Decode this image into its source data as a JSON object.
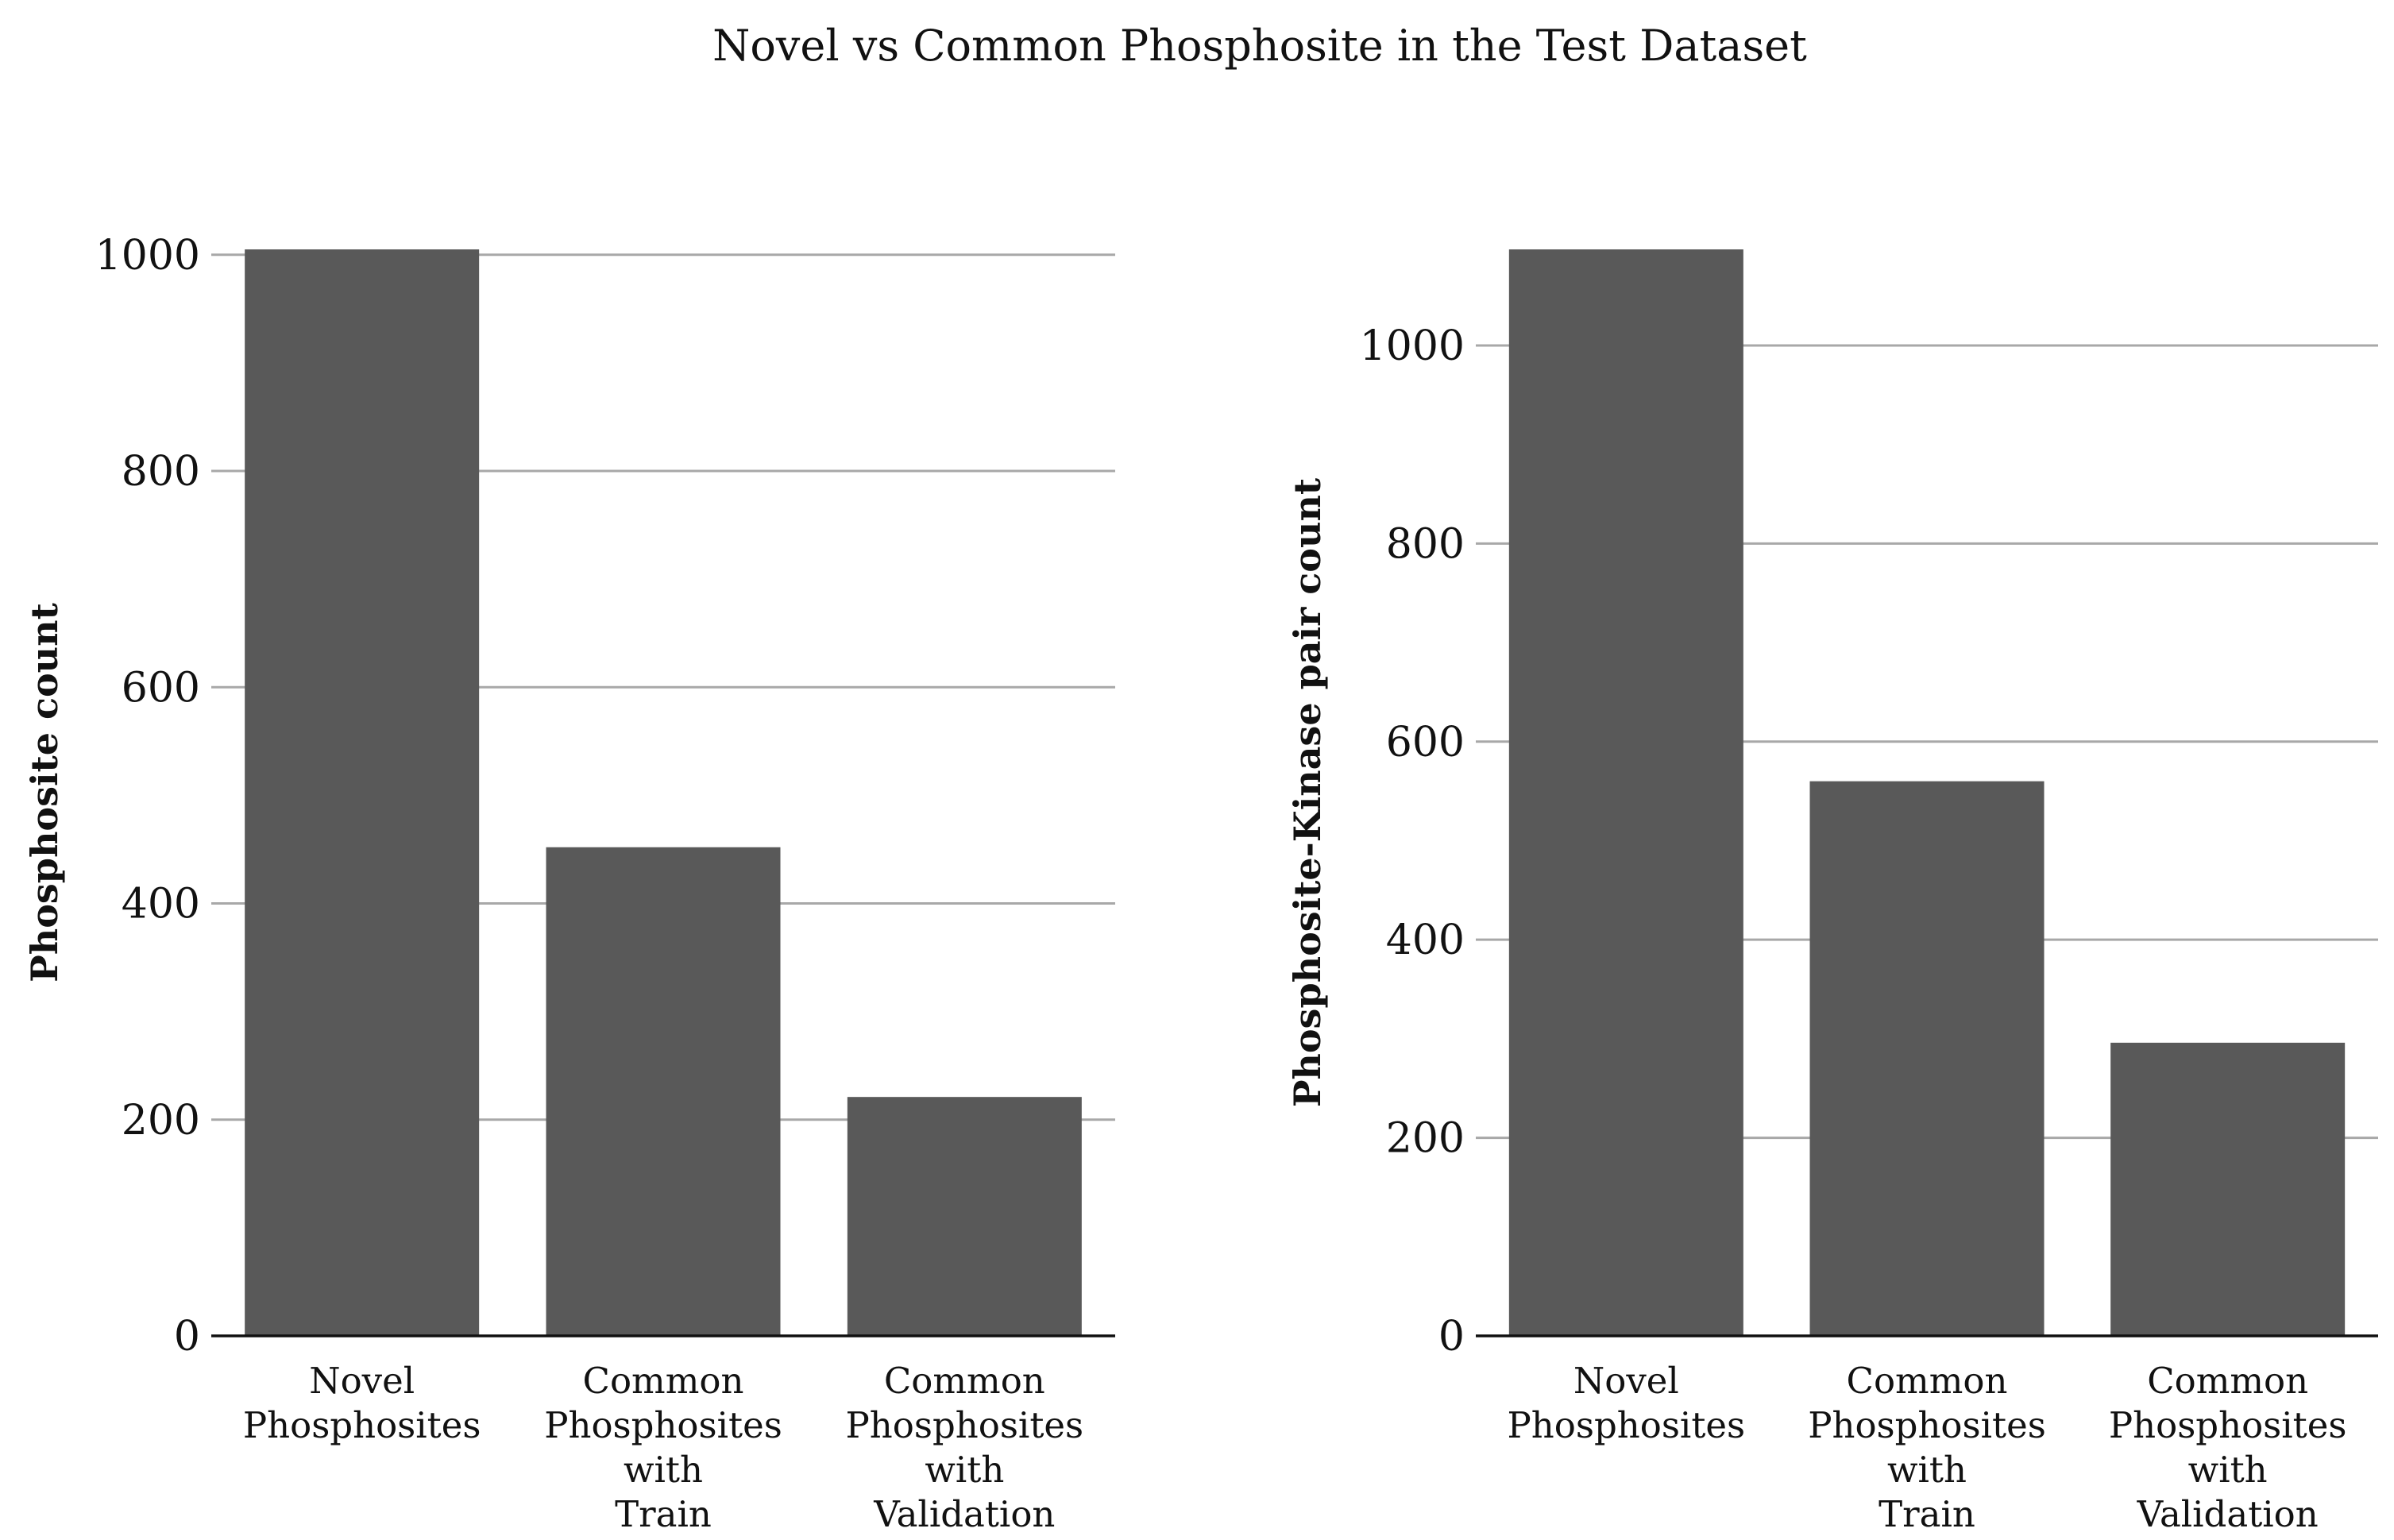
{
  "figure": {
    "title": "Novel vs Common Phosphosite in the Test Dataset"
  },
  "chart_data": [
    {
      "type": "bar",
      "categories": [
        "Novel Phosphosites",
        "Common Phosphosites with Train",
        "Common Phosphosites with Validation"
      ],
      "category_lines": [
        [
          "Novel",
          "Phosphosites"
        ],
        [
          "Common",
          "Phosphosites",
          "with",
          "Train"
        ],
        [
          "Common",
          "Phosphosites",
          "with",
          "Validation"
        ]
      ],
      "values": [
        1005,
        452,
        221
      ],
      "xlabel": "",
      "ylabel": "Phosphosite count",
      "ylim": [
        0,
        1005
      ],
      "yticks": [
        0,
        200,
        400,
        600,
        800,
        1000
      ],
      "grid": "horizontal",
      "bar_color": "#595959",
      "grid_color": "#a8a8a8"
    },
    {
      "type": "bar",
      "categories": [
        "Novel Phosphosites",
        "Common Phosphosites with Train",
        "Common Phosphosites with Validation"
      ],
      "category_lines": [
        [
          "Novel",
          "Phosphosites"
        ],
        [
          "Common",
          "Phosphosites",
          "with",
          "Train"
        ],
        [
          "Common",
          "Phosphosites",
          "with",
          "Validation"
        ]
      ],
      "values": [
        1097,
        560,
        296
      ],
      "xlabel": "",
      "ylabel": "Phosphosite-Kinase pair count",
      "ylim": [
        0,
        1097
      ],
      "yticks": [
        0,
        200,
        400,
        600,
        800,
        1000
      ],
      "grid": "horizontal",
      "bar_color": "#595959",
      "grid_color": "#a8a8a8"
    }
  ]
}
